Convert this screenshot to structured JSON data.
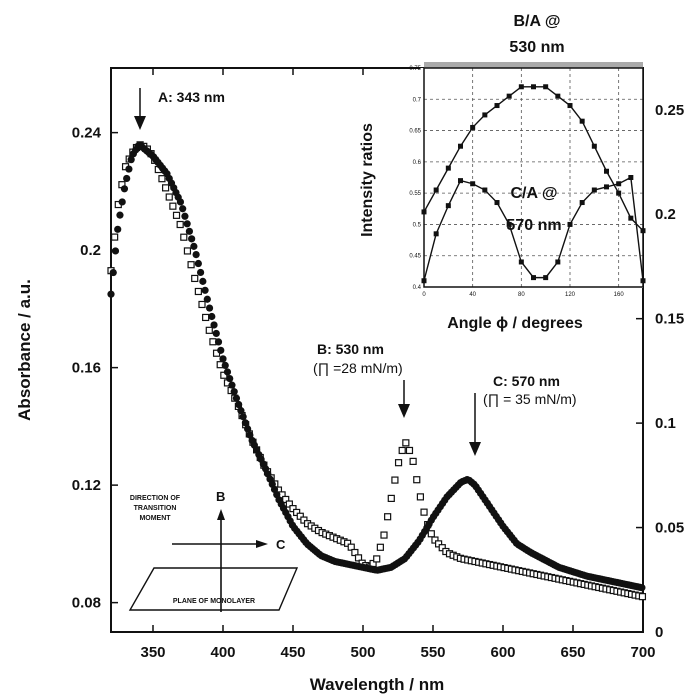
{
  "chart_data": [
    {
      "type": "scatter",
      "xlabel": "Wavelength / nm",
      "ylabel": "Absorbance / a.u.",
      "xlim": [
        320,
        700
      ],
      "ylim": [
        0.07,
        0.262
      ],
      "y2lim": [
        0,
        0.27
      ],
      "x_ticks": [
        "350",
        "400",
        "450",
        "500",
        "550",
        "600",
        "650",
        "700"
      ],
      "y_ticks": [
        "0.08",
        "0.12",
        "0.16",
        "0.2",
        "0.24"
      ],
      "y2_ticks": [
        "0",
        "0.05",
        "0.1",
        "0.15",
        "0.2",
        "0.25"
      ],
      "grid": false,
      "series": [
        {
          "marker": "open-square",
          "axis": "left",
          "x": [
            320,
            325,
            330,
            335,
            340,
            345,
            350,
            360,
            370,
            380,
            390,
            400,
            410,
            420,
            430,
            440,
            450,
            460,
            470,
            480,
            490,
            500,
            505,
            510,
            515,
            520,
            525,
            530,
            535,
            540,
            545,
            550,
            560,
            570,
            580,
            590,
            600,
            610,
            620,
            640,
            660,
            680,
            700
          ],
          "y": [
            0.193,
            0.215,
            0.228,
            0.233,
            0.236,
            0.235,
            0.232,
            0.22,
            0.208,
            0.19,
            0.173,
            0.158,
            0.148,
            0.136,
            0.126,
            0.118,
            0.112,
            0.107,
            0.104,
            0.102,
            0.1,
            0.093,
            0.092,
            0.095,
            0.103,
            0.115,
            0.127,
            0.135,
            0.13,
            0.118,
            0.108,
            0.102,
            0.097,
            0.095,
            0.094,
            0.093,
            0.092,
            0.091,
            0.09,
            0.088,
            0.086,
            0.084,
            0.082
          ]
        },
        {
          "marker": "filled-circle",
          "axis": "right",
          "x": [
            320,
            325,
            330,
            335,
            340,
            345,
            350,
            360,
            370,
            380,
            390,
            400,
            410,
            420,
            430,
            440,
            450,
            460,
            470,
            480,
            490,
            500,
            510,
            520,
            530,
            540,
            550,
            560,
            570,
            575,
            580,
            590,
            600,
            610,
            620,
            640,
            660,
            680,
            700
          ],
          "y": [
            0.185,
            0.208,
            0.222,
            0.232,
            0.236,
            0.234,
            0.232,
            0.226,
            0.216,
            0.2,
            0.181,
            0.163,
            0.149,
            0.136,
            0.126,
            0.115,
            0.106,
            0.1,
            0.096,
            0.094,
            0.093,
            0.092,
            0.091,
            0.092,
            0.095,
            0.101,
            0.109,
            0.116,
            0.121,
            0.122,
            0.12,
            0.113,
            0.106,
            0.1,
            0.097,
            0.092,
            0.089,
            0.087,
            0.085
          ]
        }
      ],
      "annotations": [
        {
          "text": "A: 343 nm",
          "x": 343
        },
        {
          "text": "B: 530 nm",
          "subtext": "(∏ =28 mN/m)",
          "x": 530
        },
        {
          "text": "C: 570 nm",
          "subtext": "(∏ = 35 mN/m)",
          "x": 578
        }
      ]
    },
    {
      "type": "line",
      "inset": true,
      "xlabel": "Angle ϕ / degrees",
      "ylabel": "Intensity ratios",
      "xlim": [
        0,
        180
      ],
      "ylim": [
        0.4,
        0.75
      ],
      "x_ticks": [
        "0",
        "40",
        "80",
        "120",
        "160"
      ],
      "y_ticks": [
        "0.4",
        "0.45",
        "0.5",
        "0.55",
        "0.6",
        "0.65",
        "0.7",
        "0.75"
      ],
      "grid": true,
      "series": [
        {
          "name": "B/A @ 530 nm",
          "x": [
            0,
            10,
            20,
            30,
            40,
            50,
            60,
            70,
            80,
            90,
            100,
            110,
            120,
            130,
            140,
            150,
            160,
            170,
            180
          ],
          "y": [
            0.52,
            0.555,
            0.59,
            0.625,
            0.655,
            0.675,
            0.69,
            0.705,
            0.72,
            0.72,
            0.72,
            0.705,
            0.69,
            0.665,
            0.625,
            0.585,
            0.55,
            0.51,
            0.49
          ]
        },
        {
          "name": "C/A @ 570 nm",
          "x": [
            0,
            10,
            20,
            30,
            40,
            50,
            60,
            70,
            80,
            90,
            100,
            110,
            120,
            130,
            140,
            150,
            160,
            170,
            180
          ],
          "y": [
            0.41,
            0.485,
            0.53,
            0.57,
            0.565,
            0.555,
            0.535,
            0.5,
            0.44,
            0.415,
            0.415,
            0.44,
            0.5,
            0.535,
            0.555,
            0.56,
            0.565,
            0.575,
            0.41
          ]
        }
      ]
    }
  ],
  "diagram": {
    "axis_b": "B",
    "axis_c": "C",
    "caption_lines": [
      "DIRECTION OF",
      "TRANSITION",
      "MOMENT"
    ],
    "plane_label": "PLANE OF MONOLAYER"
  }
}
